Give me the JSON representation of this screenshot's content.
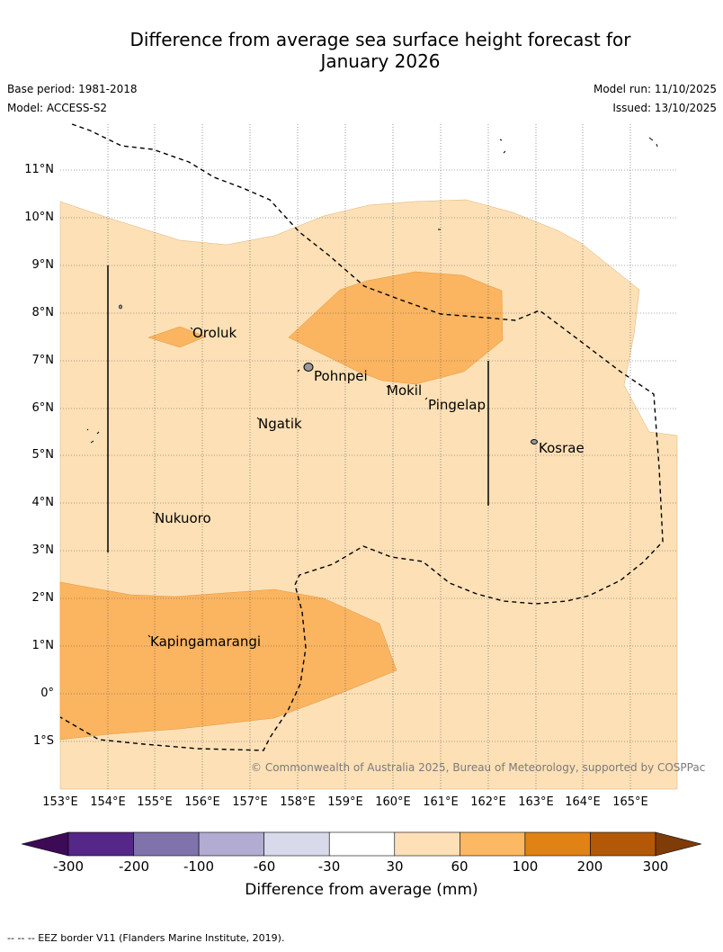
{
  "title_line1": "Difference from average sea surface height forecast for",
  "title_line2": "January 2026",
  "base_period": "Base period: 1981-2018",
  "model": "Model: ACCESS-S2",
  "model_run": "Model run: 11/10/2025",
  "issued": "Issued: 13/10/2025",
  "map": {
    "lon_range": [
      153,
      166
    ],
    "lat_range": [
      -2,
      12
    ],
    "lon_labels": [
      "153°E",
      "154°E",
      "155°E",
      "156°E",
      "157°E",
      "158°E",
      "159°E",
      "160°E",
      "161°E",
      "162°E",
      "163°E",
      "164°E",
      "165°E"
    ],
    "lat_labels": [
      "11°N",
      "10°N",
      "9°N",
      "8°N",
      "7°N",
      "6°N",
      "5°N",
      "4°N",
      "3°N",
      "2°N",
      "1°N",
      "0°",
      "1°S"
    ],
    "places": {
      "oroluk": "Oroluk",
      "pohnpei": "Pohnpei",
      "mokil": "Mokil",
      "pingelap": "Pingelap",
      "ngatik": "Ngatik",
      "kosrae": "Kosrae",
      "nukuoro": "Nukuoro",
      "kapingamarangi": "Kapingamarangi"
    },
    "fill_30_60_color": "#fde0b6",
    "fill_60_100_color": "#fbb460",
    "copyright": "© Commonwealth of Australia 2025, Bureau of Meteorology, supported by COSPPac"
  },
  "colorbar": {
    "ticks": [
      "-300",
      "-200",
      "-100",
      "-60",
      "-30",
      "30",
      "60",
      "100",
      "200",
      "300"
    ],
    "colors": [
      "#3d0a55",
      "#542788",
      "#8073ac",
      "#b2abd2",
      "#d8daeb",
      "#ffffff",
      "#fee0b6",
      "#fdb863",
      "#e08214",
      "#b35806",
      "#7f3b08"
    ],
    "label": "Difference from average (mm)"
  },
  "footnote": "--  --  -- EEZ border V11 (Flanders Marine Institute, 2019)."
}
